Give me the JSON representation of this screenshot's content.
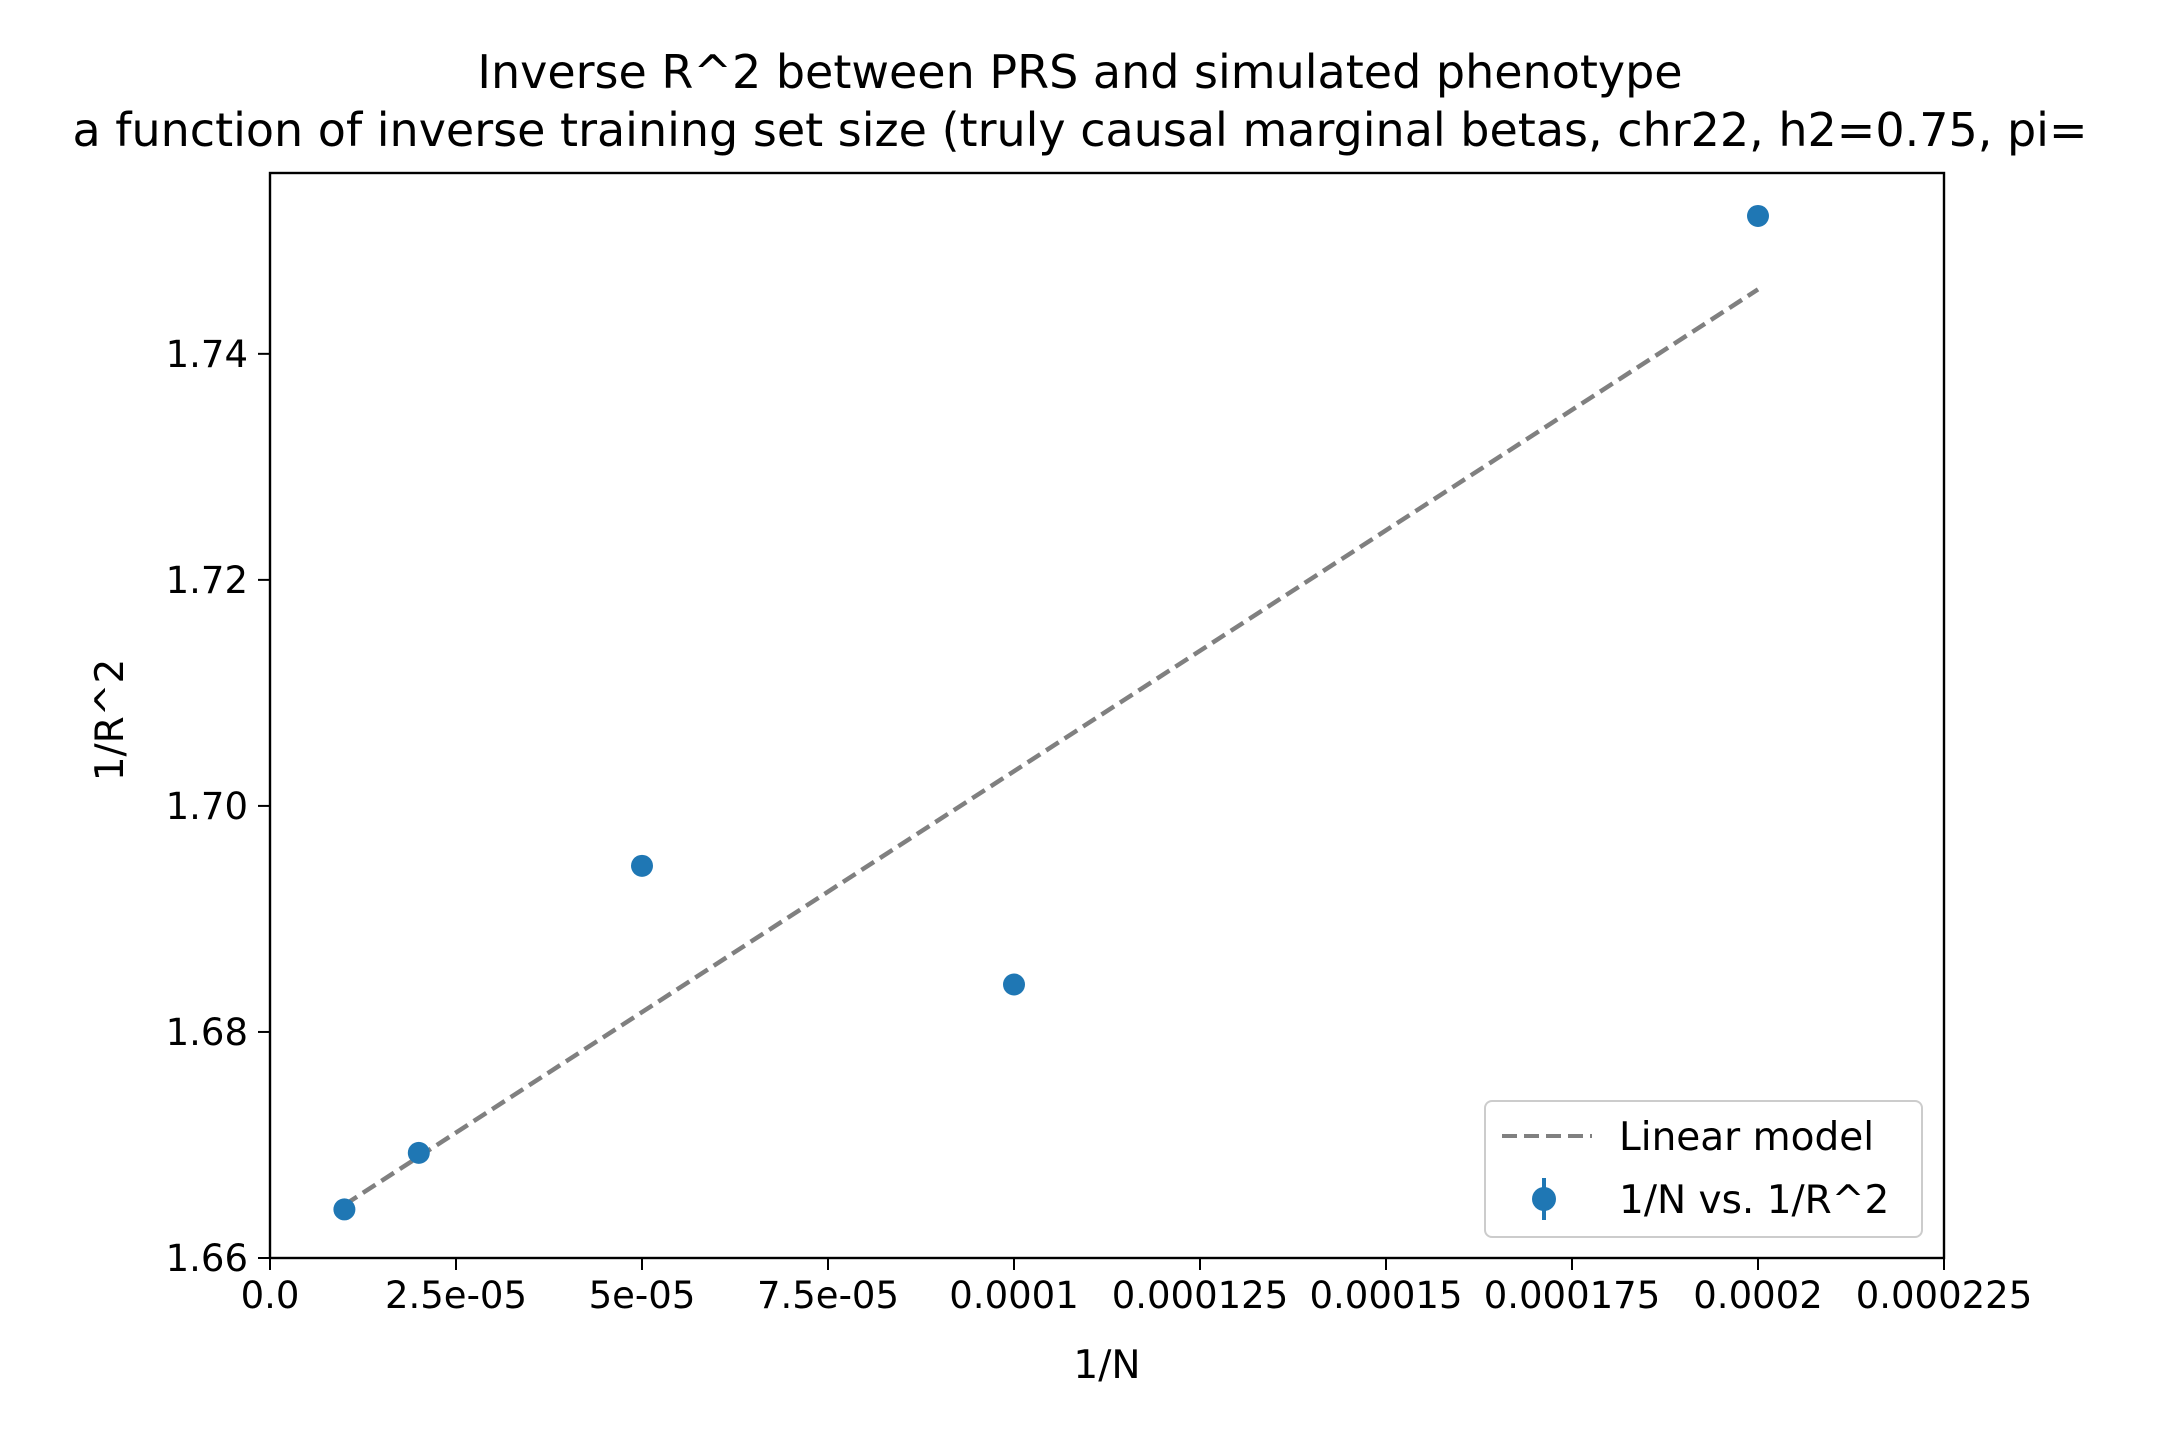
{
  "chart_data": {
    "type": "scatter",
    "title": "Inverse R^2 between PRS and simulated phenotype",
    "subtitle": "a function of inverse training set size (truly causal marginal betas, chr22, h2=0.75, pi=",
    "xlabel": "1/N",
    "ylabel": "1/R^2",
    "xlim": [
      0,
      0.000225
    ],
    "ylim": [
      1.66,
      1.756
    ],
    "grid": false,
    "legend_position": "lower-right",
    "x_ticks": [
      {
        "value": 0,
        "label": "0.0"
      },
      {
        "value": 2.5e-05,
        "label": "2.5e-05"
      },
      {
        "value": 5e-05,
        "label": "5e-05"
      },
      {
        "value": 7.5e-05,
        "label": "7.5e-05"
      },
      {
        "value": 0.0001,
        "label": "0.0001"
      },
      {
        "value": 0.000125,
        "label": "0.000125"
      },
      {
        "value": 0.00015,
        "label": "0.00015"
      },
      {
        "value": 0.000175,
        "label": "0.000175"
      },
      {
        "value": 0.0002,
        "label": "0.0002"
      },
      {
        "value": 0.000225,
        "label": "0.000225"
      }
    ],
    "y_ticks": [
      {
        "value": 1.66,
        "label": "1.66"
      },
      {
        "value": 1.68,
        "label": "1.68"
      },
      {
        "value": 1.7,
        "label": "1.70"
      },
      {
        "value": 1.72,
        "label": "1.72"
      },
      {
        "value": 1.74,
        "label": "1.74"
      }
    ],
    "series": [
      {
        "name": "1/N vs. 1/R^2",
        "kind": "scatter",
        "color": "#1f77b4",
        "points": [
          {
            "x": 1e-05,
            "y": 1.6643
          },
          {
            "x": 2e-05,
            "y": 1.6693
          },
          {
            "x": 5e-05,
            "y": 1.6947
          },
          {
            "x": 0.0001,
            "y": 1.6842
          },
          {
            "x": 0.0002,
            "y": 1.7522
          }
        ]
      },
      {
        "name": "Linear model",
        "kind": "line",
        "style": "dashed",
        "color": "#808080",
        "points": [
          {
            "x": 1e-05,
            "y": 1.6647
          },
          {
            "x": 0.0002,
            "y": 1.7457
          }
        ]
      }
    ]
  }
}
